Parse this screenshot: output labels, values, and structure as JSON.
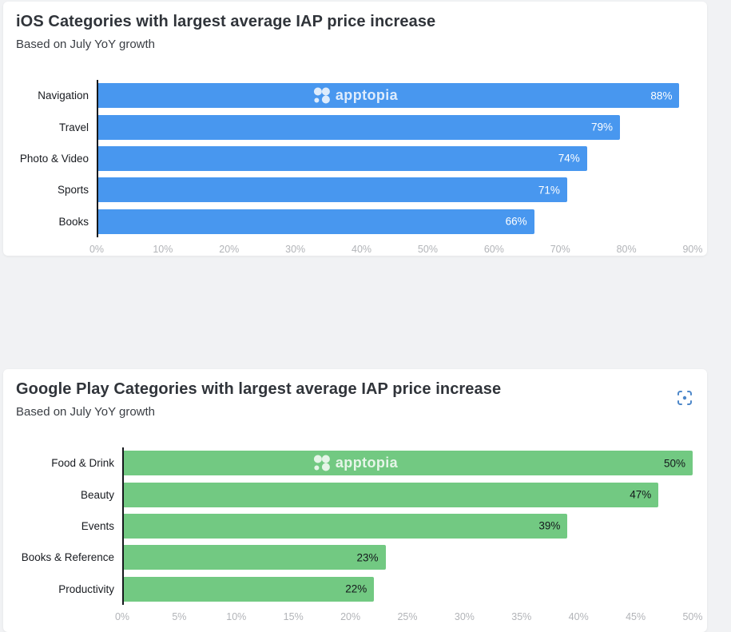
{
  "page_background": "#f1f2f4",
  "colors": {
    "ios_bar": "#4897ef",
    "google_play_bar": "#72c982",
    "axis_line": "#15181c",
    "tick_label": "#b2b4b8",
    "scan_icon": "#4d87c9"
  },
  "icons": {
    "watermark_logo": "apptopia-clover-icon",
    "scan_region": "frame-corners-with-dot-icon"
  },
  "chart_data": [
    {
      "type": "bar",
      "orientation": "horizontal",
      "title": "iOS Categories with largest average IAP price increase",
      "subtitle": "Based on July YoY growth",
      "watermark": "apptopia",
      "categories": [
        "Navigation",
        "Travel",
        "Photo & Video",
        "Sports",
        "Books"
      ],
      "values": [
        88,
        79,
        74,
        71,
        66
      ],
      "value_labels": [
        "88%",
        "79%",
        "74%",
        "71%",
        "66%"
      ],
      "bar_color": "#4897ef",
      "value_label_color": "#ffffff",
      "xlim": [
        0,
        90
      ],
      "x_tick_labels": [
        "0%",
        "10%",
        "20%",
        "30%",
        "40%",
        "50%",
        "60%",
        "70%",
        "80%",
        "90%"
      ],
      "grid": false,
      "legend": "none"
    },
    {
      "type": "bar",
      "orientation": "horizontal",
      "title": "Google Play Categories with largest average IAP price increase",
      "subtitle": "Based on July YoY growth",
      "watermark": "apptopia",
      "categories": [
        "Food & Drink",
        "Beauty",
        "Events",
        "Books & Reference",
        "Productivity"
      ],
      "values": [
        50,
        47,
        39,
        23,
        22
      ],
      "value_labels": [
        "50%",
        "47%",
        "39%",
        "23%",
        "22%"
      ],
      "bar_color": "#72c982",
      "value_label_color": "#14181c",
      "xlim": [
        0,
        50
      ],
      "x_tick_labels": [
        "0%",
        "5%",
        "10%",
        "15%",
        "20%",
        "25%",
        "30%",
        "35%",
        "40%",
        "45%",
        "50%"
      ],
      "grid": false,
      "legend": "none"
    }
  ]
}
